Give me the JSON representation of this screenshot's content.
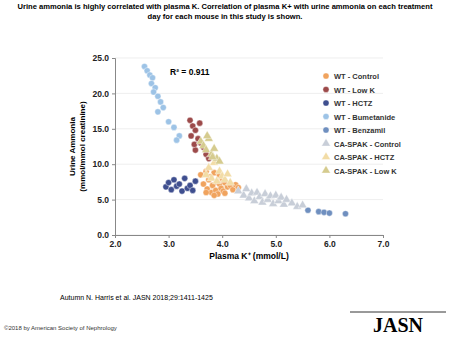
{
  "chart_data": {
    "type": "scatter",
    "title": "Urine ammonia is highly correlated with plasma K. Correlation of plasma K+ with urine ammonia on each treatment day for each mouse in this study is shown.",
    "x_label": "Plasma K⁺ (mmol/L)",
    "y_label": [
      "Urine Ammonia",
      "(mmol/mmol creatinine)"
    ],
    "annotations": [
      "R² = 0.911"
    ],
    "xlim": [
      2,
      7
    ],
    "xticks": [
      {
        "value": 2,
        "label": "2.0"
      },
      {
        "value": 3,
        "label": "3.0"
      },
      {
        "value": 4,
        "label": "4.0"
      },
      {
        "value": 5,
        "label": "5.0"
      },
      {
        "value": 6,
        "label": "6.0"
      },
      {
        "value": 7,
        "label": "7.0"
      }
    ],
    "ylim": [
      0,
      25
    ],
    "yticks": [
      {
        "value": 0,
        "label": "0.0"
      },
      {
        "value": 5,
        "label": "5.0"
      },
      {
        "value": 10,
        "label": "10.0"
      },
      {
        "value": 15,
        "label": "15.0"
      },
      {
        "value": 20,
        "label": "20.0"
      },
      {
        "value": 25,
        "label": "25.0"
      }
    ],
    "grid": true,
    "legend": "upper right",
    "series": [
      {
        "name": "WT - Control",
        "color": "#f0a35e",
        "marker": "circle",
        "x": [
          3.6,
          3.65,
          3.7,
          3.72,
          3.75,
          3.78,
          3.8,
          3.82,
          3.85,
          3.88,
          3.9,
          3.92,
          3.95,
          3.98,
          4.0,
          4.02,
          4.05,
          4.1,
          4.15,
          4.2,
          4.25,
          3.7,
          3.85,
          3.95,
          4.05,
          4.3
        ],
        "values": [
          8.5,
          7.2,
          9.0,
          6.5,
          7.8,
          8.2,
          6.0,
          7.0,
          8.8,
          6.3,
          7.5,
          5.8,
          7.2,
          6.6,
          8.0,
          6.2,
          7.4,
          6.8,
          7.0,
          6.4,
          7.1,
          6.0,
          5.6,
          8.4,
          5.9,
          6.7
        ]
      },
      {
        "name": "WT - Low K",
        "color": "#9c4a4a",
        "marker": "circle",
        "x": [
          3.4,
          3.45,
          3.5,
          3.42,
          3.55,
          3.6,
          3.65,
          3.5,
          3.7,
          3.75,
          3.58,
          3.48
        ],
        "values": [
          16.2,
          15.4,
          14.8,
          14.0,
          13.6,
          13.0,
          12.4,
          12.0,
          11.4,
          10.8,
          15.8,
          12.8
        ]
      },
      {
        "name": "WT - HCTZ",
        "color": "#3f4f8f",
        "marker": "circle",
        "x": [
          2.95,
          3.0,
          3.05,
          3.1,
          3.15,
          3.2,
          3.25,
          3.3,
          3.35,
          3.4,
          3.45,
          3.5
        ],
        "values": [
          6.8,
          7.4,
          6.4,
          7.8,
          6.9,
          7.2,
          6.2,
          8.0,
          6.6,
          7.0,
          6.3,
          7.6
        ]
      },
      {
        "name": "WT - Bumetanide",
        "color": "#9dc3e6",
        "marker": "circle",
        "x": [
          2.55,
          2.6,
          2.65,
          2.7,
          2.68,
          2.75,
          2.72,
          2.8,
          2.85,
          2.9,
          2.8,
          3.0,
          3.1,
          3.2,
          3.15
        ],
        "values": [
          23.8,
          23.2,
          22.6,
          22.2,
          21.4,
          20.8,
          20.2,
          19.6,
          18.8,
          18.0,
          17.4,
          16.0,
          15.2,
          14.0,
          13.4
        ]
      },
      {
        "name": "WT - Benzamil",
        "color": "#6f8fbf",
        "marker": "circle",
        "x": [
          5.6,
          5.8,
          5.9,
          6.0,
          6.3
        ],
        "values": [
          3.5,
          3.3,
          3.2,
          3.1,
          3.0
        ]
      },
      {
        "name": "CA-SPAK - Control",
        "color": "#c8ced8",
        "marker": "triangle",
        "x": [
          4.3,
          4.4,
          4.45,
          4.5,
          4.55,
          4.6,
          4.65,
          4.7,
          4.75,
          4.8,
          4.85,
          4.9,
          4.95,
          5.0,
          5.05,
          5.1,
          5.15,
          5.2,
          5.3,
          5.4,
          5.5
        ],
        "values": [
          6.2,
          5.6,
          6.5,
          5.2,
          5.9,
          4.8,
          6.0,
          5.4,
          4.6,
          5.8,
          5.0,
          5.5,
          4.4,
          5.6,
          4.8,
          5.3,
          4.3,
          5.0,
          4.5,
          4.0,
          4.2
        ]
      },
      {
        "name": "CA-SPAK - HCTZ",
        "color": "#f2dca6",
        "marker": "triangle",
        "x": [
          3.7,
          3.75,
          3.8,
          3.85,
          3.9,
          3.95,
          4.0,
          4.05,
          4.1,
          4.15
        ],
        "values": [
          8.5,
          9.5,
          8.0,
          10.2,
          7.6,
          9.0,
          8.3,
          7.8,
          8.6,
          7.4
        ]
      },
      {
        "name": "CA-SPAK - Low K",
        "color": "#d5cb8e",
        "marker": "triangle",
        "x": [
          3.6,
          3.65,
          3.7,
          3.75,
          3.8,
          3.85,
          3.9,
          3.72,
          3.82,
          3.95
        ],
        "values": [
          13.2,
          12.6,
          12.0,
          13.6,
          11.4,
          12.2,
          10.8,
          14.0,
          11.0,
          10.4
        ]
      }
    ]
  },
  "citation": "Autumn N. Harris et al. JASN 2018;29:1411-1425",
  "copyright": "©2018 by American Society of Nephrology",
  "logo": "JASN"
}
